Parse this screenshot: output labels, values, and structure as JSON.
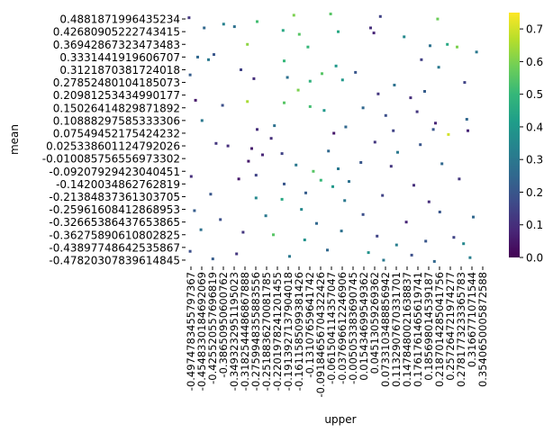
{
  "chart_data": {
    "type": "heatmap",
    "xlabel": "upper",
    "ylabel": "mean",
    "y_tick_labels": [
      "0.4881871996435234",
      "0.42680905222743415",
      "0.36942867323473483",
      "0.3331441919606707",
      "0.3121870381724018",
      "0.27852480104185073",
      "0.20981253434990177",
      "0.15026414829871892",
      "0.10888297585333306",
      "0.07549452175424232",
      "0.025338601124792026",
      "-0.010085756556973302",
      "-0.09207929423040451",
      "-0.1420034862762819",
      "-0.21384837361303705",
      "-0.25961608412868953",
      "-0.32665386437653865",
      "-0.36275890610802825",
      "-0.43897748642535867",
      "-0.47820307839614845"
    ],
    "x_tick_labels": [
      "-0.4974783455797367",
      "-0.4548330184692069",
      "-0.425520557696819",
      "-0.38650950600762",
      "-0.3493232951195023",
      "-0.3182544486867888",
      "-0.2759948355883556",
      "-0.2518836270081785",
      "-0.2201978241201455",
      "-0.1913927137904018",
      "-0.1611585099381426",
      "-0.13107659641742",
      "-0.09184656704322426",
      "-0.061504114357047",
      "-0.037696612246906",
      "-0.005053383690745",
      "0.015434699549362",
      "0.04513059269362",
      "0.0733103488856942",
      "0.1132907670331701",
      "0.1478480021638837",
      "0.1761761465619741",
      "0.185698014539187",
      "0.2187014285041756",
      "0.257264721974277",
      "0.2781773233365783",
      "0.3166771071544",
      "0.3540650005872588"
    ],
    "colorbar": {
      "colormap": "viridis",
      "range": [
        0.0,
        0.75
      ],
      "ticks": [
        "0.0",
        "0.1",
        "0.2",
        "0.3",
        "0.4",
        "0.5",
        "0.6",
        "0.7"
      ],
      "stops": [
        "#440154",
        "#482878",
        "#3e4a89",
        "#31688e",
        "#26828e",
        "#1f9e89",
        "#35b779",
        "#6ece58",
        "#b5de2b",
        "#fde725"
      ]
    },
    "grid": false,
    "cells": [
      {
        "x": 0.2,
        "y": 0.3,
        "v": 0.12
      },
      {
        "x": 1.6,
        "y": 1.1,
        "v": 0.25
      },
      {
        "x": 3.4,
        "y": 0.8,
        "v": 0.33
      },
      {
        "x": 4.4,
        "y": 1.0,
        "v": 0.28
      },
      {
        "x": 6.5,
        "y": 0.6,
        "v": 0.52
      },
      {
        "x": 9.9,
        "y": 0.1,
        "v": 0.6
      },
      {
        "x": 13.3,
        "y": 0.0,
        "v": 0.55
      },
      {
        "x": 14.0,
        "y": 1.4,
        "v": 0.45
      },
      {
        "x": 17.9,
        "y": 0.2,
        "v": 0.15
      },
      {
        "x": 17.0,
        "y": 1.1,
        "v": 0.1
      },
      {
        "x": 23.2,
        "y": 0.4,
        "v": 0.58
      },
      {
        "x": 20.1,
        "y": 1.8,
        "v": 0.35
      },
      {
        "x": 5.6,
        "y": 2.4,
        "v": 0.62
      },
      {
        "x": 8.9,
        "y": 1.3,
        "v": 0.45
      },
      {
        "x": 10.4,
        "y": 1.6,
        "v": 0.55
      },
      {
        "x": 11.2,
        "y": 2.6,
        "v": 0.5
      },
      {
        "x": 17.3,
        "y": 1.5,
        "v": 0.08
      },
      {
        "x": 22.5,
        "y": 2.5,
        "v": 0.28
      },
      {
        "x": 24.1,
        "y": 2.4,
        "v": 0.45
      },
      {
        "x": 25.0,
        "y": 2.6,
        "v": 0.6
      },
      {
        "x": 26.8,
        "y": 3.0,
        "v": 0.3
      },
      {
        "x": 1.0,
        "y": 3.4,
        "v": 0.25
      },
      {
        "x": 2.0,
        "y": 3.6,
        "v": 0.3
      },
      {
        "x": 2.5,
        "y": 3.2,
        "v": 0.2
      },
      {
        "x": 5.0,
        "y": 4.4,
        "v": 0.15
      },
      {
        "x": 9.0,
        "y": 3.7,
        "v": 0.5
      },
      {
        "x": 12.5,
        "y": 4.7,
        "v": 0.55
      },
      {
        "x": 13.8,
        "y": 4.1,
        "v": 0.4
      },
      {
        "x": 15.6,
        "y": 4.6,
        "v": 0.2
      },
      {
        "x": 21.7,
        "y": 3.6,
        "v": 0.14
      },
      {
        "x": 23.3,
        "y": 4.2,
        "v": 0.3
      },
      {
        "x": 0.3,
        "y": 4.8,
        "v": 0.22
      },
      {
        "x": 6.2,
        "y": 5.1,
        "v": 0.1
      },
      {
        "x": 9.3,
        "y": 5.0,
        "v": 0.28
      },
      {
        "x": 10.3,
        "y": 6.0,
        "v": 0.6
      },
      {
        "x": 11.4,
        "y": 5.3,
        "v": 0.48
      },
      {
        "x": 14.4,
        "y": 5.2,
        "v": 0.4
      },
      {
        "x": 17.7,
        "y": 6.3,
        "v": 0.12
      },
      {
        "x": 19.2,
        "y": 5.6,
        "v": 0.28
      },
      {
        "x": 20.7,
        "y": 6.6,
        "v": 0.1
      },
      {
        "x": 22.0,
        "y": 6.1,
        "v": 0.22
      },
      {
        "x": 25.7,
        "y": 5.4,
        "v": 0.15
      },
      {
        "x": 0.8,
        "y": 6.8,
        "v": 0.05
      },
      {
        "x": 3.3,
        "y": 7.2,
        "v": 0.18
      },
      {
        "x": 5.6,
        "y": 6.9,
        "v": 0.65
      },
      {
        "x": 9.0,
        "y": 7.0,
        "v": 0.55
      },
      {
        "x": 11.4,
        "y": 7.3,
        "v": 0.52
      },
      {
        "x": 12.7,
        "y": 7.6,
        "v": 0.4
      },
      {
        "x": 16.3,
        "y": 7.4,
        "v": 0.25
      },
      {
        "x": 18.4,
        "y": 8.0,
        "v": 0.18
      },
      {
        "x": 21.3,
        "y": 7.7,
        "v": 0.12
      },
      {
        "x": 23.0,
        "y": 8.6,
        "v": 0.08
      },
      {
        "x": 25.9,
        "y": 8.3,
        "v": 0.25
      },
      {
        "x": 1.4,
        "y": 8.4,
        "v": 0.3
      },
      {
        "x": 6.5,
        "y": 9.1,
        "v": 0.1
      },
      {
        "x": 8.1,
        "y": 8.8,
        "v": 0.28
      },
      {
        "x": 13.6,
        "y": 9.4,
        "v": 0.05
      },
      {
        "x": 14.7,
        "y": 8.9,
        "v": 0.25
      },
      {
        "x": 19.1,
        "y": 9.2,
        "v": 0.15
      },
      {
        "x": 22.8,
        "y": 9.1,
        "v": 0.2
      },
      {
        "x": 24.2,
        "y": 9.5,
        "v": 0.7
      },
      {
        "x": 26.0,
        "y": 9.2,
        "v": 0.08
      },
      {
        "x": 2.7,
        "y": 10.2,
        "v": 0.12
      },
      {
        "x": 3.8,
        "y": 10.4,
        "v": 0.1
      },
      {
        "x": 6.0,
        "y": 10.6,
        "v": 0.06
      },
      {
        "x": 7.8,
        "y": 9.8,
        "v": 0.1
      },
      {
        "x": 8.8,
        "y": 11.0,
        "v": 0.15
      },
      {
        "x": 13.1,
        "y": 10.8,
        "v": 0.25
      },
      {
        "x": 17.4,
        "y": 10.1,
        "v": 0.12
      },
      {
        "x": 19.5,
        "y": 10.9,
        "v": 0.3
      },
      {
        "x": 21.6,
        "y": 10.3,
        "v": 0.2
      },
      {
        "x": 5.7,
        "y": 11.6,
        "v": 0.05
      },
      {
        "x": 7.0,
        "y": 11.1,
        "v": 0.08
      },
      {
        "x": 10.1,
        "y": 11.9,
        "v": 0.3
      },
      {
        "x": 11.7,
        "y": 12.4,
        "v": 0.55
      },
      {
        "x": 14.0,
        "y": 12.2,
        "v": 0.3
      },
      {
        "x": 16.1,
        "y": 11.7,
        "v": 0.2
      },
      {
        "x": 18.9,
        "y": 12.0,
        "v": 0.12
      },
      {
        "x": 23.6,
        "y": 11.8,
        "v": 0.25
      },
      {
        "x": 0.4,
        "y": 12.8,
        "v": 0.1
      },
      {
        "x": 4.8,
        "y": 13.0,
        "v": 0.05
      },
      {
        "x": 6.4,
        "y": 12.7,
        "v": 0.15
      },
      {
        "x": 9.0,
        "y": 13.4,
        "v": 0.2
      },
      {
        "x": 12.4,
        "y": 13.1,
        "v": 0.5
      },
      {
        "x": 13.5,
        "y": 13.6,
        "v": 0.4
      },
      {
        "x": 15.0,
        "y": 13.2,
        "v": 0.28
      },
      {
        "x": 21.0,
        "y": 13.5,
        "v": 0.1
      },
      {
        "x": 25.2,
        "y": 13.0,
        "v": 0.12
      },
      {
        "x": 2.2,
        "y": 14.2,
        "v": 0.2
      },
      {
        "x": 6.4,
        "y": 14.5,
        "v": 0.35
      },
      {
        "x": 8.8,
        "y": 14.6,
        "v": 0.45
      },
      {
        "x": 11.0,
        "y": 14.1,
        "v": 0.22
      },
      {
        "x": 14.6,
        "y": 14.7,
        "v": 0.3
      },
      {
        "x": 18.1,
        "y": 14.3,
        "v": 0.15
      },
      {
        "x": 22.4,
        "y": 14.8,
        "v": 0.1
      },
      {
        "x": 0.7,
        "y": 15.5,
        "v": 0.22
      },
      {
        "x": 3.1,
        "y": 16.2,
        "v": 0.18
      },
      {
        "x": 7.3,
        "y": 15.9,
        "v": 0.3
      },
      {
        "x": 10.6,
        "y": 15.4,
        "v": 0.35
      },
      {
        "x": 12.0,
        "y": 16.5,
        "v": 0.25
      },
      {
        "x": 16.3,
        "y": 15.8,
        "v": 0.18
      },
      {
        "x": 20.3,
        "y": 16.4,
        "v": 0.08
      },
      {
        "x": 23.4,
        "y": 15.6,
        "v": 0.2
      },
      {
        "x": 26.5,
        "y": 16.0,
        "v": 0.25
      },
      {
        "x": 1.3,
        "y": 17.0,
        "v": 0.28
      },
      {
        "x": 5.2,
        "y": 17.2,
        "v": 0.12
      },
      {
        "x": 8.0,
        "y": 17.4,
        "v": 0.55
      },
      {
        "x": 10.9,
        "y": 17.8,
        "v": 0.38
      },
      {
        "x": 14.3,
        "y": 17.1,
        "v": 0.28
      },
      {
        "x": 17.6,
        "y": 17.5,
        "v": 0.15
      },
      {
        "x": 19.4,
        "y": 18.2,
        "v": 0.32
      },
      {
        "x": 22.1,
        "y": 17.9,
        "v": 0.2
      },
      {
        "x": 24.7,
        "y": 17.6,
        "v": 0.15
      },
      {
        "x": 25.6,
        "y": 18.1,
        "v": 0.35
      },
      {
        "x": 0.3,
        "y": 18.7,
        "v": 0.18
      },
      {
        "x": 2.4,
        "y": 19.3,
        "v": 0.22
      },
      {
        "x": 4.6,
        "y": 18.9,
        "v": 0.12
      },
      {
        "x": 9.5,
        "y": 19.1,
        "v": 0.3
      },
      {
        "x": 13.0,
        "y": 18.6,
        "v": 0.25
      },
      {
        "x": 16.8,
        "y": 18.8,
        "v": 0.38
      },
      {
        "x": 18.2,
        "y": 19.4,
        "v": 0.3
      },
      {
        "x": 20.8,
        "y": 19.0,
        "v": 0.18
      },
      {
        "x": 22.9,
        "y": 19.5,
        "v": 0.25
      },
      {
        "x": 26.2,
        "y": 19.2,
        "v": 0.32
      }
    ]
  }
}
